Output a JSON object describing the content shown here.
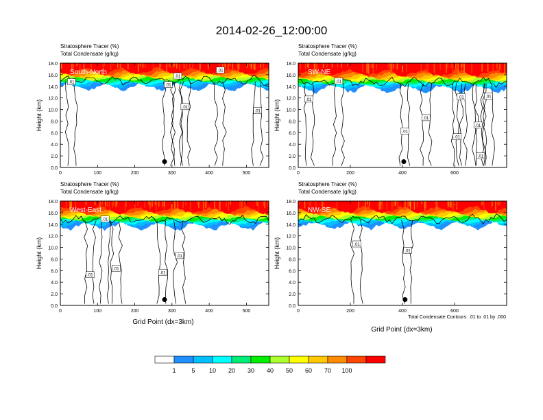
{
  "title": "2014-02-26_12:00:00",
  "panel_header": [
    "Stratosphere Tracer   (%)",
    "Total Condensate   (g/kg)"
  ],
  "y_label": "Height (km)",
  "x_label": "Grid Point (dx=3km)",
  "contour_note": "Total Condensate Contours: .01 to .01 by .000",
  "contour_label": ".01",
  "colors": {
    "white": "#ffffff",
    "c1": "#1e90ff",
    "c5": "#00bfff",
    "c10": "#00ffff",
    "c20": "#00ee76",
    "c30": "#00ee00",
    "c40": "#adff2f",
    "c50": "#ffff00",
    "c60": "#ffc800",
    "c70": "#ff8c00",
    "c80": "#ff4500",
    "c100": "#ff0000"
  },
  "colorbar": {
    "labels": [
      "1",
      "5",
      "10",
      "20",
      "30",
      "40",
      "50",
      "60",
      "70",
      "100"
    ],
    "colors": [
      "#ffffff",
      "#1e90ff",
      "#00bfff",
      "#00ffff",
      "#00ee76",
      "#00ee00",
      "#adff2f",
      "#ffff00",
      "#ffc800",
      "#ff8c00",
      "#ff4500",
      "#ff0000"
    ]
  },
  "chart_data": [
    {
      "type": "heatmap",
      "panel_title": "South-North",
      "xlim": [
        0,
        560
      ],
      "ylim": [
        0,
        18
      ],
      "xticks": [
        0,
        100,
        200,
        300,
        400,
        500
      ],
      "yticks": [
        "0.0",
        "2.0",
        "4.0",
        "6.0",
        "8.0",
        "10.0",
        "12.0",
        "14.0",
        "16.0",
        "18.0"
      ],
      "tropopause_km": 14.8,
      "marker": {
        "x": 280,
        "y": 1.0
      },
      "contour_labels": [
        {
          "x": 30,
          "y": 14.8
        },
        {
          "x": 290,
          "y": 14.3
        },
        {
          "x": 315,
          "y": 15.8
        },
        {
          "x": 335,
          "y": 10.5
        },
        {
          "x": 430,
          "y": 16.8
        },
        {
          "x": 530,
          "y": 9.8
        }
      ]
    },
    {
      "type": "heatmap",
      "panel_title": "SW-NE",
      "xlim": [
        0,
        800
      ],
      "ylim": [
        0,
        18
      ],
      "xticks": [
        0,
        200,
        400,
        600
      ],
      "yticks": [
        "0.0",
        "2.0",
        "4.0",
        "6.0",
        "8.0",
        "10.0",
        "12.0",
        "14.0",
        "16.0",
        "18.0"
      ],
      "tropopause_km": 14.5,
      "marker": {
        "x": 405,
        "y": 1.0
      },
      "contour_labels": [
        {
          "x": 40,
          "y": 11.8
        },
        {
          "x": 155,
          "y": 14.9
        },
        {
          "x": 410,
          "y": 6.3
        },
        {
          "x": 490,
          "y": 8.6
        },
        {
          "x": 610,
          "y": 5.3
        },
        {
          "x": 625,
          "y": 12.2
        },
        {
          "x": 690,
          "y": 7.3
        },
        {
          "x": 730,
          "y": 12.3
        },
        {
          "x": 700,
          "y": 2.0
        }
      ]
    },
    {
      "type": "heatmap",
      "panel_title": "West-East",
      "xlim": [
        0,
        560
      ],
      "ylim": [
        0,
        18
      ],
      "xticks": [
        0,
        100,
        200,
        300,
        400,
        500
      ],
      "yticks": [
        "0.0",
        "2.0",
        "4.0",
        "6.0",
        "8.0",
        "10.0",
        "12.0",
        "14.0",
        "16.0",
        "18.0"
      ],
      "tropopause_km": 14.6,
      "marker": {
        "x": 280,
        "y": 1.0
      },
      "contour_labels": [
        {
          "x": 120,
          "y": 14.9
        },
        {
          "x": 80,
          "y": 5.3
        },
        {
          "x": 150,
          "y": 6.4
        },
        {
          "x": 275,
          "y": 5.7
        },
        {
          "x": 320,
          "y": 8.6
        }
      ]
    },
    {
      "type": "heatmap",
      "panel_title": "NW-SE",
      "xlim": [
        0,
        800
      ],
      "ylim": [
        0,
        18
      ],
      "xticks": [
        0,
        200,
        400,
        600
      ],
      "yticks": [
        "0.0",
        "2.0",
        "4.0",
        "6.0",
        "8.0",
        "10.0",
        "12.0",
        "14.0",
        "16.0",
        "18.0"
      ],
      "tropopause_km": 14.7,
      "marker": {
        "x": 410,
        "y": 1.0
      },
      "contour_labels": [
        {
          "x": 225,
          "y": 10.6
        },
        {
          "x": 420,
          "y": 9.5
        }
      ]
    }
  ]
}
